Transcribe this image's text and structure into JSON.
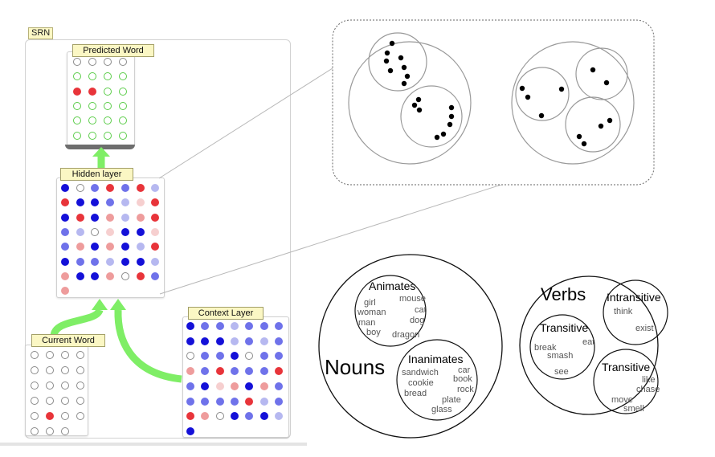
{
  "panel": {
    "title": "SRN"
  },
  "layers": {
    "predicted": {
      "label": "Predicted Word",
      "rows": [
        [
          "o",
          "o",
          "o",
          "o"
        ],
        [
          "g",
          "g",
          "g",
          "g"
        ],
        [
          "R",
          "R",
          "g",
          "g"
        ],
        [
          "g",
          "g",
          "g",
          "g"
        ],
        [
          "g",
          "g",
          "g",
          "g"
        ],
        [
          "g",
          "g",
          "g",
          "g"
        ]
      ]
    },
    "hidden": {
      "label": "Hidden layer",
      "rows": [
        [
          "B",
          "o",
          "b",
          "R",
          "b",
          "R",
          "l"
        ],
        [
          "R",
          "B",
          "B",
          "b",
          "l",
          "p",
          "R"
        ],
        [
          "B",
          "R",
          "B",
          "r",
          "l",
          "r",
          "R"
        ],
        [
          "b",
          "l",
          "o",
          "p",
          "B",
          "B",
          "p"
        ],
        [
          "b",
          "r",
          "B",
          "r",
          "B",
          "l",
          "R"
        ],
        [
          "B",
          "b",
          "b",
          "l",
          "B",
          "B",
          "l"
        ],
        [
          "r",
          "B",
          "B",
          "r",
          "o",
          "R",
          "b"
        ],
        [
          "r"
        ]
      ]
    },
    "current": {
      "label": "Current Word",
      "rows": [
        [
          "o",
          "o",
          "o",
          "o"
        ],
        [
          "o",
          "o",
          "o",
          "o"
        ],
        [
          "o",
          "o",
          "o",
          "o"
        ],
        [
          "o",
          "o",
          "o",
          "o"
        ],
        [
          "o",
          "R",
          "o",
          "o"
        ],
        [
          "o",
          "o",
          "o"
        ]
      ]
    },
    "context": {
      "label": "Context Layer",
      "rows": [
        [
          "B",
          "b",
          "b",
          "l",
          "b",
          "b",
          "b"
        ],
        [
          "B",
          "B",
          "B",
          "l",
          "b",
          "l",
          "b"
        ],
        [
          "o",
          "b",
          "b",
          "B",
          "o",
          "b",
          "b"
        ],
        [
          "r",
          "b",
          "R",
          "b",
          "b",
          "b",
          "R"
        ],
        [
          "b",
          "B",
          "p",
          "r",
          "B",
          "r",
          "b"
        ],
        [
          "b",
          "b",
          "b",
          "b",
          "R",
          "l",
          "b"
        ],
        [
          "R",
          "r",
          "o",
          "B",
          "b",
          "B",
          "l"
        ],
        [
          "B"
        ]
      ]
    }
  },
  "clusters": {
    "nouns": {
      "heading": "Nouns",
      "animates": {
        "heading": "Animates",
        "words": [
          "girl",
          "mouse",
          "woman",
          "cat",
          "man",
          "dog",
          "boy",
          "dragon"
        ]
      },
      "inanimates": {
        "heading": "Inanimates",
        "words": [
          "sandwich",
          "car",
          "cookie",
          "book",
          "bread",
          "rock",
          "plate",
          "glass"
        ]
      }
    },
    "verbs": {
      "heading": "Verbs",
      "intransitive": {
        "heading": "Intransitive",
        "words": [
          "think",
          "exist"
        ]
      },
      "transitive_a": {
        "heading": "Transitive",
        "words": [
          "eat",
          "break",
          "smash",
          "see"
        ]
      },
      "transitive_b": {
        "heading": "Transitive",
        "words": [
          "like",
          "chase",
          "move",
          "smell"
        ]
      }
    }
  },
  "colors": {
    "R": "#e8343a",
    "r": "#ee9c9c",
    "p": "#f6cfcf",
    "B": "#1410d8",
    "b": "#6f72ea",
    "l": "#b6b8f0",
    "o": "#ffffff",
    "g": "#ffffff",
    "arrow": "#7fee66",
    "dot_stroke": "#8a8a8a",
    "green_stroke": "#5ccd4a"
  }
}
